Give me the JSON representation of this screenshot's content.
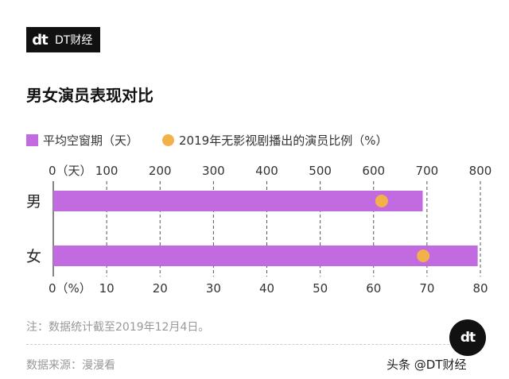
{
  "brand": {
    "mark": "dt",
    "name": "DT财经"
  },
  "title": "男女演员表现对比",
  "legend": {
    "bar_label": "平均空窗期（天）",
    "dot_label": "2019年无影视剧播出的演员比例（%）"
  },
  "colors": {
    "bar": "#c26be0",
    "dot": "#f3b149",
    "grid": "#555555"
  },
  "chart_data": {
    "type": "bar",
    "orientation": "horizontal",
    "categories": [
      "男",
      "女"
    ],
    "series": [
      {
        "name": "平均空窗期（天）",
        "axis": "top",
        "values": [
          692,
          795
        ]
      },
      {
        "name": "2019年无影视剧播出的演员比例（%）",
        "axis": "bottom",
        "mark": "dot",
        "values": [
          61.5,
          69.3
        ]
      }
    ],
    "top_axis": {
      "range": [
        0,
        800
      ],
      "ticks": [
        "0（天）",
        "100",
        "200",
        "300",
        "400",
        "500",
        "600",
        "700",
        "800"
      ]
    },
    "bottom_axis": {
      "range": [
        0,
        80
      ],
      "ticks": [
        "0（%）",
        "10",
        "20",
        "30",
        "40",
        "50",
        "60",
        "70",
        "80"
      ]
    },
    "grid": true,
    "legend_position": "top-left"
  },
  "footer": {
    "note": "注：数据统计截至2019年12月4日。",
    "source": "数据来源：漫漫看"
  },
  "watermark": {
    "badge": "dt",
    "text": "头条 @DT财经"
  }
}
